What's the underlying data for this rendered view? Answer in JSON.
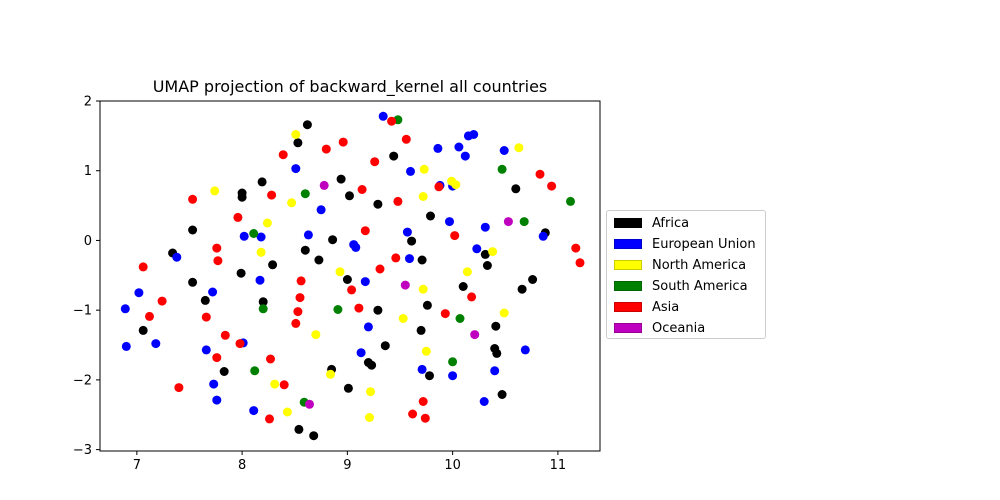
{
  "chart_data": {
    "type": "scatter",
    "title": "UMAP projection of backward_kernel all countries",
    "xlabel": "",
    "ylabel": "",
    "xlim": [
      6.65,
      11.4
    ],
    "ylim": [
      -3.02,
      2.0
    ],
    "xticks": [
      7,
      8,
      9,
      10,
      11
    ],
    "yticks": [
      2,
      1,
      0,
      -1,
      -2,
      -3
    ],
    "tick_labels_x": [
      "7",
      "8",
      "9",
      "10",
      "11"
    ],
    "tick_labels_y": [
      "2",
      "1",
      "0",
      "−1",
      "−2",
      "−3"
    ],
    "grid": false,
    "legend_position": "right, outside",
    "series": [
      {
        "name": "Africa",
        "color": "#000000",
        "points": [
          [
            8.62,
            1.66
          ],
          [
            8.53,
            1.4
          ],
          [
            8.19,
            0.84
          ],
          [
            8.0,
            0.68
          ],
          [
            8.0,
            0.62
          ],
          [
            7.53,
            0.15
          ],
          [
            7.34,
            -0.18
          ],
          [
            7.53,
            -0.6
          ],
          [
            7.65,
            -0.86
          ],
          [
            7.06,
            -1.29
          ],
          [
            8.2,
            -0.88
          ],
          [
            7.99,
            -0.47
          ],
          [
            8.29,
            -0.35
          ],
          [
            7.83,
            -1.88
          ],
          [
            8.6,
            -0.14
          ],
          [
            8.73,
            -0.28
          ],
          [
            8.86,
            0.01
          ],
          [
            8.85,
            -1.85
          ],
          [
            8.54,
            -2.71
          ],
          [
            8.68,
            -2.8
          ],
          [
            9.01,
            -2.12
          ],
          [
            8.94,
            0.88
          ],
          [
            9.02,
            0.64
          ],
          [
            9.29,
            0.52
          ],
          [
            9.44,
            1.21
          ],
          [
            9.0,
            -0.56
          ],
          [
            9.29,
            -1.0
          ],
          [
            9.36,
            -1.51
          ],
          [
            9.2,
            -1.75
          ],
          [
            9.23,
            -1.79
          ],
          [
            9.61,
            -0.01
          ],
          [
            9.71,
            -0.28
          ],
          [
            9.79,
            0.35
          ],
          [
            9.7,
            -1.29
          ],
          [
            9.76,
            -0.93
          ],
          [
            9.78,
            -1.94
          ],
          [
            10.1,
            -0.66
          ],
          [
            10.31,
            -0.2
          ],
          [
            10.33,
            -0.36
          ],
          [
            10.41,
            -1.23
          ],
          [
            10.4,
            -1.55
          ],
          [
            10.42,
            -1.62
          ],
          [
            10.47,
            -2.21
          ],
          [
            10.6,
            0.74
          ],
          [
            10.66,
            -0.7
          ],
          [
            10.76,
            -0.56
          ],
          [
            10.88,
            0.11
          ]
        ]
      },
      {
        "name": "European Union",
        "color": "#0000ff",
        "points": [
          [
            6.89,
            -0.98
          ],
          [
            7.02,
            -0.75
          ],
          [
            6.9,
            -1.52
          ],
          [
            7.18,
            -1.48
          ],
          [
            7.38,
            -0.24
          ],
          [
            7.66,
            -1.57
          ],
          [
            7.72,
            -0.74
          ],
          [
            7.73,
            -2.06
          ],
          [
            7.76,
            -2.29
          ],
          [
            8.02,
            0.06
          ],
          [
            8.18,
            0.05
          ],
          [
            8.17,
            -0.57
          ],
          [
            8.01,
            -1.47
          ],
          [
            8.11,
            -2.44
          ],
          [
            8.51,
            1.03
          ],
          [
            8.63,
            0.08
          ],
          [
            8.75,
            0.44
          ],
          [
            9.06,
            -0.06
          ],
          [
            9.08,
            -0.1
          ],
          [
            9.13,
            -1.61
          ],
          [
            9.17,
            -0.59
          ],
          [
            9.2,
            -1.24
          ],
          [
            9.34,
            1.78
          ],
          [
            9.57,
            0.12
          ],
          [
            9.6,
            0.99
          ],
          [
            9.59,
            -0.26
          ],
          [
            9.71,
            -1.85
          ],
          [
            9.86,
            1.32
          ],
          [
            9.88,
            0.79
          ],
          [
            9.97,
            0.27
          ],
          [
            10.0,
            0.78
          ],
          [
            10.06,
            1.34
          ],
          [
            10.12,
            1.21
          ],
          [
            10.15,
            1.5
          ],
          [
            10.2,
            1.52
          ],
          [
            10.23,
            -0.12
          ],
          [
            10.31,
            0.19
          ],
          [
            10.4,
            -1.87
          ],
          [
            10.3,
            -2.31
          ],
          [
            10.49,
            1.29
          ],
          [
            10.69,
            -1.57
          ],
          [
            10.86,
            0.06
          ],
          [
            10.0,
            -1.94
          ]
        ]
      },
      {
        "name": "North America",
        "color": "#ffff00",
        "points": [
          [
            7.74,
            0.71
          ],
          [
            8.24,
            0.25
          ],
          [
            8.18,
            -0.17
          ],
          [
            8.51,
            1.52
          ],
          [
            8.47,
            0.54
          ],
          [
            8.7,
            -1.35
          ],
          [
            8.31,
            -2.06
          ],
          [
            8.43,
            -2.46
          ],
          [
            8.84,
            -1.92
          ],
          [
            8.93,
            -0.45
          ],
          [
            9.22,
            -2.17
          ],
          [
            9.21,
            -2.54
          ],
          [
            9.73,
            1.02
          ],
          [
            9.72,
            0.63
          ],
          [
            9.72,
            -0.7
          ],
          [
            9.53,
            -1.12
          ],
          [
            9.75,
            -1.59
          ],
          [
            9.99,
            0.85
          ],
          [
            10.03,
            0.8
          ],
          [
            10.14,
            -0.45
          ],
          [
            10.38,
            -0.16
          ],
          [
            10.49,
            -1.04
          ],
          [
            10.63,
            1.33
          ]
        ]
      },
      {
        "name": "South America",
        "color": "#008000",
        "points": [
          [
            8.11,
            0.1
          ],
          [
            8.2,
            -0.98
          ],
          [
            8.12,
            -1.87
          ],
          [
            8.59,
            -2.32
          ],
          [
            8.91,
            -0.99
          ],
          [
            9.48,
            1.73
          ],
          [
            10.0,
            -1.74
          ],
          [
            10.07,
            -1.12
          ],
          [
            10.47,
            1.02
          ],
          [
            10.68,
            0.27
          ],
          [
            11.12,
            0.56
          ],
          [
            8.6,
            0.67
          ]
        ]
      },
      {
        "name": "Asia",
        "color": "#ff0000",
        "points": [
          [
            7.06,
            -0.38
          ],
          [
            7.12,
            -1.09
          ],
          [
            7.24,
            -0.87
          ],
          [
            7.4,
            -2.11
          ],
          [
            7.53,
            0.59
          ],
          [
            7.66,
            -1.1
          ],
          [
            7.76,
            -0.11
          ],
          [
            7.77,
            -0.29
          ],
          [
            7.76,
            -1.68
          ],
          [
            7.84,
            -1.36
          ],
          [
            7.96,
            0.33
          ],
          [
            7.98,
            -1.48
          ],
          [
            8.28,
            0.65
          ],
          [
            8.27,
            -1.7
          ],
          [
            8.26,
            -2.56
          ],
          [
            8.39,
            1.23
          ],
          [
            8.4,
            -2.07
          ],
          [
            8.56,
            -0.58
          ],
          [
            8.55,
            -0.82
          ],
          [
            8.53,
            -1.02
          ],
          [
            8.51,
            -1.19
          ],
          [
            8.96,
            1.41
          ],
          [
            8.8,
            1.31
          ],
          [
            9.04,
            -0.71
          ],
          [
            9.11,
            -0.97
          ],
          [
            9.14,
            0.73
          ],
          [
            9.17,
            0.14
          ],
          [
            9.26,
            1.13
          ],
          [
            9.31,
            -0.41
          ],
          [
            9.42,
            1.71
          ],
          [
            9.48,
            0.56
          ],
          [
            9.46,
            -0.25
          ],
          [
            9.56,
            1.45
          ],
          [
            9.62,
            -2.49
          ],
          [
            9.72,
            -2.31
          ],
          [
            9.74,
            -2.55
          ],
          [
            9.87,
            0.77
          ],
          [
            9.93,
            -1.05
          ],
          [
            10.02,
            0.07
          ],
          [
            10.18,
            -0.81
          ],
          [
            10.83,
            0.95
          ],
          [
            10.94,
            0.78
          ],
          [
            11.17,
            -0.11
          ],
          [
            11.21,
            -0.32
          ]
        ]
      },
      {
        "name": "Oceania",
        "color": "#bf00bf",
        "points": [
          [
            8.64,
            -2.35
          ],
          [
            8.78,
            0.79
          ],
          [
            9.55,
            -0.64
          ],
          [
            10.21,
            -1.35
          ],
          [
            10.53,
            0.27
          ]
        ]
      }
    ]
  }
}
